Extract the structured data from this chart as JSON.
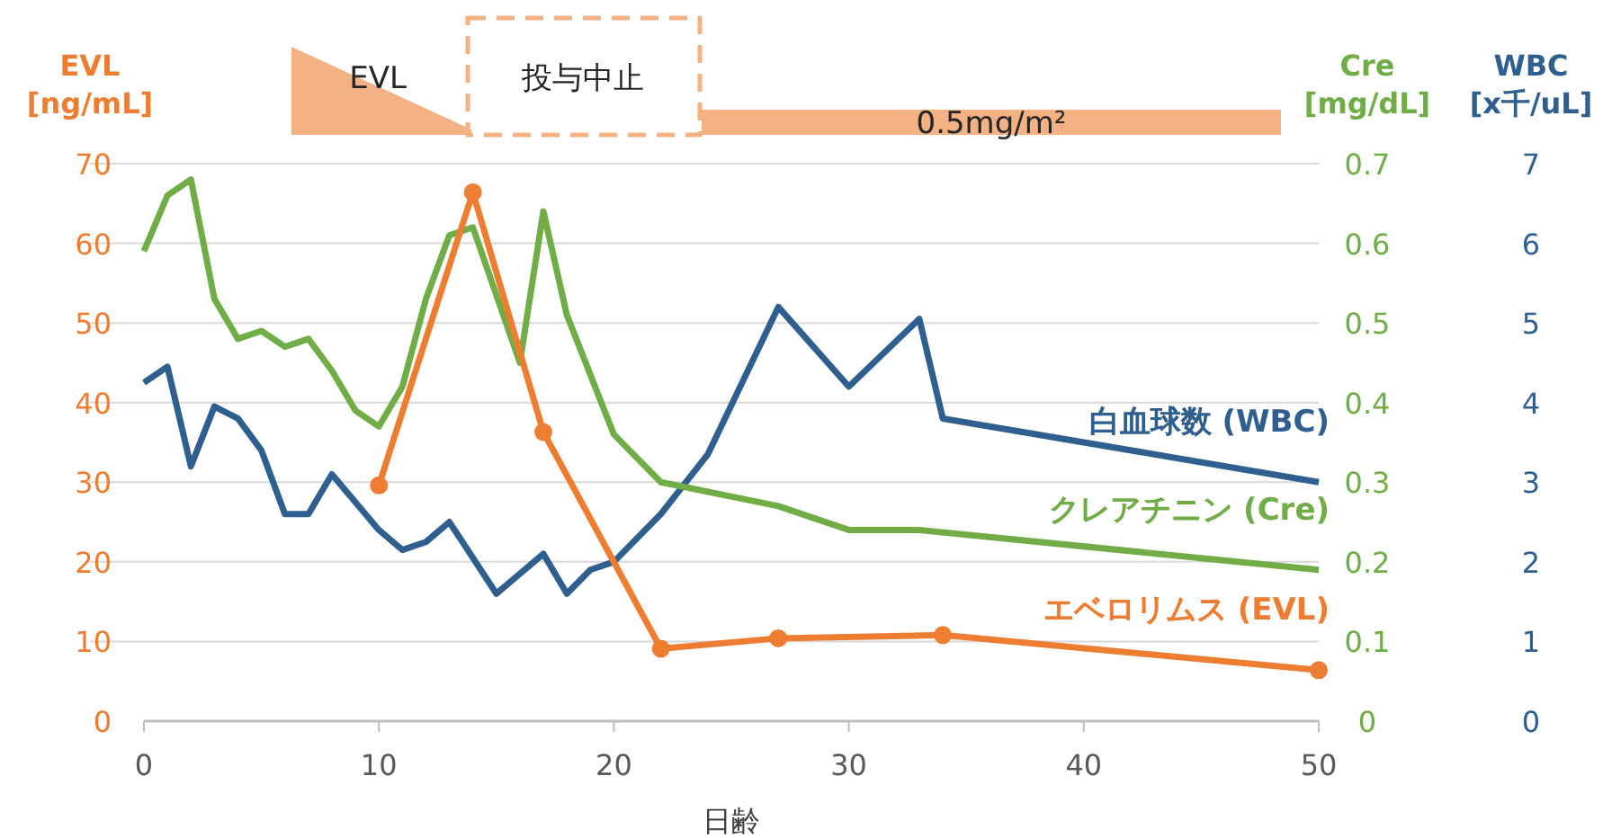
{
  "chart_data": {
    "type": "line",
    "xlabel": "日齢",
    "ylabel": "EVL [ng/mL]",
    "y2label": "Cre [mg/dL]",
    "y3label": "WBC [x千/uL]",
    "xlim": [
      0,
      50
    ],
    "xticks": [
      0,
      10,
      20,
      30,
      40,
      50
    ],
    "ylim": [
      0,
      70
    ],
    "yticks": [
      0,
      10,
      20,
      30,
      40,
      50,
      60,
      70
    ],
    "y2lim": [
      0,
      0.7
    ],
    "y2ticks": [
      0,
      0.1,
      0.2,
      0.3,
      0.4,
      0.5,
      0.6,
      0.7
    ],
    "y3lim": [
      0,
      7
    ],
    "y3ticks": [
      0,
      1,
      2,
      3,
      4,
      5,
      6,
      7
    ],
    "grid": "y",
    "line_style": "solid",
    "series": [
      {
        "name": "白血球数 (WBC)",
        "color": "#2e5f8f",
        "axis": "y3",
        "marker": "none",
        "x": [
          0,
          1,
          2,
          3,
          4,
          5,
          6,
          7,
          8,
          9,
          10,
          11,
          12,
          13,
          14,
          15,
          16,
          17,
          18,
          19,
          20,
          22,
          24,
          27,
          30,
          33,
          34,
          50
        ],
        "values": [
          4.25,
          4.45,
          3.2,
          3.95,
          3.8,
          3.4,
          2.6,
          2.6,
          3.1,
          2.75,
          2.4,
          2.15,
          2.25,
          2.5,
          2.05,
          1.6,
          1.85,
          2.1,
          1.6,
          1.9,
          2.0,
          2.6,
          3.35,
          5.2,
          4.2,
          5.05,
          3.8,
          3.0
        ]
      },
      {
        "name": "クレアチニン (Cre)",
        "color": "#70ad47",
        "axis": "y2",
        "marker": "none",
        "x": [
          0,
          1,
          2,
          3,
          4,
          5,
          6,
          7,
          8,
          9,
          10,
          11,
          12,
          13,
          14,
          16,
          17,
          18,
          20,
          22,
          27,
          30,
          33,
          50
        ],
        "values": [
          0.59,
          0.66,
          0.68,
          0.53,
          0.48,
          0.49,
          0.47,
          0.48,
          0.44,
          0.39,
          0.37,
          0.42,
          0.53,
          0.61,
          0.62,
          0.45,
          0.64,
          0.51,
          0.36,
          0.3,
          0.27,
          0.24,
          0.24,
          0.19
        ]
      },
      {
        "name": "エベロリムス (EVL)",
        "color": "#ed7d31",
        "marker": "circle",
        "x": [
          10,
          14,
          17,
          22,
          27,
          34,
          50
        ],
        "values": [
          29.6,
          66.4,
          36.3,
          9.1,
          10.4,
          10.8,
          6.4
        ]
      }
    ],
    "annotations": [
      "EVL",
      "投与中止",
      "0.5mg/m²"
    ]
  }
}
